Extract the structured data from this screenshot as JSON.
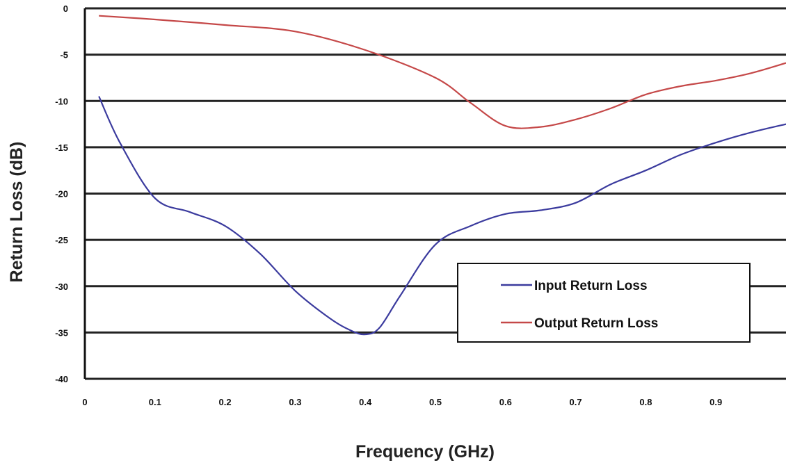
{
  "chart_data": {
    "type": "line",
    "xlabel": "Frequency (GHz)",
    "ylabel": "Return Loss (dB)",
    "xlim": [
      0,
      1.0
    ],
    "ylim": [
      -40,
      0
    ],
    "x_ticks": [
      0,
      0.1,
      0.2,
      0.3,
      0.4,
      0.5,
      0.6,
      0.7,
      0.8,
      0.9
    ],
    "x_tick_labels": [
      "0",
      "0.1",
      "0.2",
      "0.3",
      "0.4",
      "0.5",
      "0.6",
      "0.7",
      "0.8",
      "0.9"
    ],
    "y_ticks": [
      0,
      -5,
      -10,
      -15,
      -20,
      -25,
      -30,
      -35,
      -40
    ],
    "y_tick_labels": [
      "0",
      "-5",
      "-10",
      "-15",
      "-20",
      "-25",
      "-30",
      "-35",
      "-40"
    ],
    "grid": true,
    "legend_position": "lower-right",
    "series": [
      {
        "name": "Input Return Loss",
        "color": "#3b3b9e",
        "x": [
          0.02,
          0.05,
          0.1,
          0.15,
          0.2,
          0.25,
          0.3,
          0.35,
          0.38,
          0.4,
          0.42,
          0.45,
          0.5,
          0.55,
          0.6,
          0.65,
          0.7,
          0.75,
          0.8,
          0.85,
          0.9,
          0.95,
          1.0
        ],
        "y": [
          -9.5,
          -14.5,
          -20.5,
          -22,
          -23.5,
          -26.5,
          -30.5,
          -33.5,
          -34.8,
          -35.2,
          -34.5,
          -31,
          -25.5,
          -23.5,
          -22.2,
          -21.8,
          -21,
          -19,
          -17.5,
          -15.8,
          -14.5,
          -13.4,
          -12.5
        ]
      },
      {
        "name": "Output Return Loss",
        "color": "#c54848",
        "x": [
          0.02,
          0.1,
          0.2,
          0.3,
          0.4,
          0.5,
          0.55,
          0.6,
          0.65,
          0.7,
          0.75,
          0.8,
          0.85,
          0.9,
          0.95,
          1.0
        ],
        "y": [
          -0.8,
          -1.2,
          -1.8,
          -2.5,
          -4.5,
          -7.5,
          -10.2,
          -12.7,
          -12.8,
          -12.0,
          -10.8,
          -9.3,
          -8.4,
          -7.8,
          -7.0,
          -5.9
        ]
      }
    ]
  }
}
